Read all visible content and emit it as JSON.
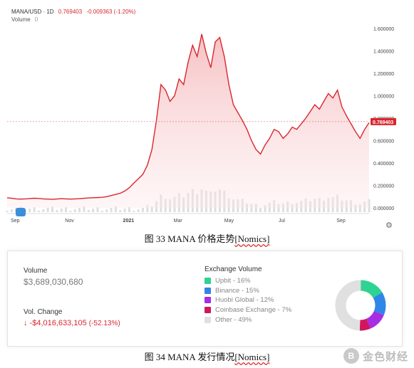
{
  "chart": {
    "symbol": "MANA/USD · 1D",
    "price": "0.769403",
    "change": "-0.009363 (-1.20%)",
    "volume_label": "Volume",
    "volume_value": "0",
    "current_price_tag": "0.769403",
    "colors": {
      "line": "#d9262e",
      "fill": "#f7c9cb",
      "volume": "#d0d0d0"
    }
  },
  "chart_data": {
    "type": "line",
    "title": "",
    "xlabel": "",
    "ylabel": "",
    "x_ticks": [
      "Sep",
      "Nov",
      "2021",
      "Mar",
      "May",
      "Jul",
      "Sep"
    ],
    "y_ticks": [
      "1.600000",
      "1.400000",
      "1.200000",
      "1.000000",
      "0.800000",
      "0.600000",
      "0.400000",
      "0.200000",
      "0.000000"
    ],
    "ylim": [
      0,
      1.6
    ],
    "series": [
      {
        "values": [
          0.09,
          0.085,
          0.08,
          0.078,
          0.08,
          0.083,
          0.086,
          0.084,
          0.08,
          0.078,
          0.077,
          0.079,
          0.082,
          0.08,
          0.078,
          0.08,
          0.082,
          0.085,
          0.088,
          0.09,
          0.092,
          0.094,
          0.1,
          0.11,
          0.12,
          0.13,
          0.15,
          0.18,
          0.22,
          0.26,
          0.3,
          0.38,
          0.52,
          0.78,
          1.1,
          1.05,
          0.95,
          1.0,
          1.15,
          1.1,
          1.3,
          1.45,
          1.35,
          1.55,
          1.38,
          1.25,
          1.48,
          1.52,
          1.35,
          1.1,
          0.92,
          0.85,
          0.78,
          0.7,
          0.6,
          0.52,
          0.48,
          0.56,
          0.62,
          0.7,
          0.68,
          0.62,
          0.66,
          0.72,
          0.7,
          0.75,
          0.8,
          0.86,
          0.92,
          0.88,
          0.95,
          1.02,
          0.98,
          1.05,
          0.9,
          0.82,
          0.75,
          0.68,
          0.62,
          0.7,
          0.76
        ]
      }
    ]
  },
  "captions": {
    "fig33_prefix": "图 33    MANA 价格走势",
    "fig33_link": "[Nomics]",
    "fig34_prefix": "图 34    MANA 发行情况",
    "fig34_link": "[Nomics]"
  },
  "stats": {
    "volume_label": "Volume",
    "volume_value": "$3,689,030,680",
    "vol_change_label": "Vol. Change",
    "vol_change_arrow": "↓",
    "vol_change_value": "-$4,016,633,105",
    "vol_change_pct": "(-52.13%)"
  },
  "exchange": {
    "title": "Exchange Volume",
    "items": [
      {
        "label": "Upbit - 16%",
        "share": 16,
        "color": "#2fd391"
      },
      {
        "label": "Binance - 15%",
        "share": 15,
        "color": "#2f86e8"
      },
      {
        "label": "Huobi Global - 12%",
        "share": 12,
        "color": "#a72de4"
      },
      {
        "label": "Coinbase Exchange - 7%",
        "share": 7,
        "color": "#d0175e"
      },
      {
        "label": "Other - 49%",
        "share": 49,
        "color": "#e0e0e0"
      }
    ]
  },
  "watermark": {
    "logo": "B",
    "text": "金色财经"
  }
}
